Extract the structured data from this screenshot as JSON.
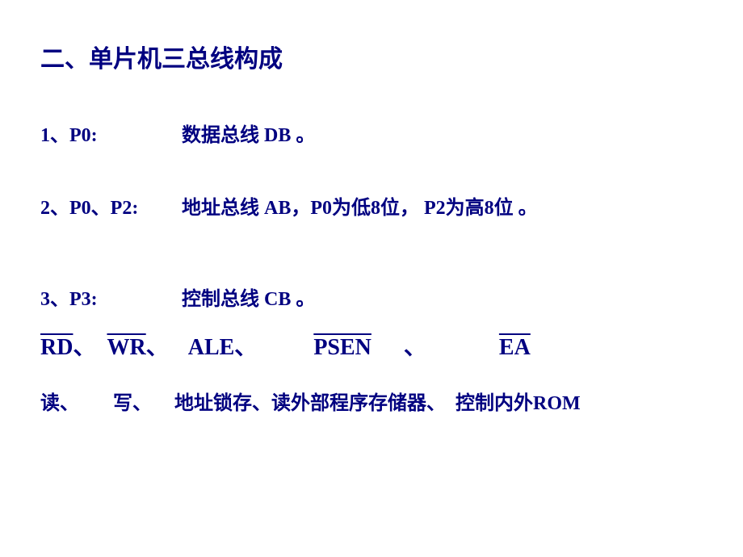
{
  "title": "二、单片机三总线构成",
  "line1": {
    "label": "1、P0:",
    "desc": "数据总线 DB 。"
  },
  "line2": {
    "label": "2、P0、P2:",
    "desc": "地址总线 AB，P0为低8位， P2为高8位  。"
  },
  "line3": {
    "label": "3、P3:",
    "desc": "控制总线 CB 。"
  },
  "signals": {
    "rd": "RD",
    "wr": "WR",
    "ale": "ALE",
    "psen": "PSEN",
    "ea": "EA",
    "sep": "、"
  },
  "desc": {
    "read": "读、",
    "write": "写、",
    "latch": "地址锁存、",
    "extrom": "读外部程序存储器、",
    "ctrlrom": "控制内外ROM"
  },
  "colors": {
    "text": "#000080",
    "background": "#ffffff"
  }
}
